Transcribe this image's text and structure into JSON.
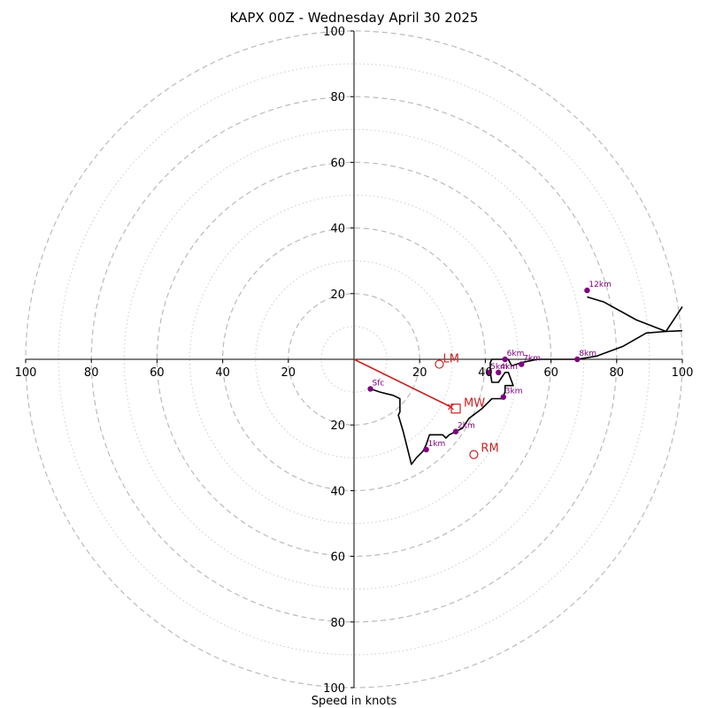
{
  "chart_data": {
    "type": "hodograph",
    "title": "KAPX 00Z - Wednesday April 30 2025",
    "xlabel": "Speed in knots",
    "ylabel": "",
    "xlim": [
      -100,
      100
    ],
    "ylim": [
      -100,
      100
    ],
    "ring_step_major": 20,
    "ring_step_minor": 10,
    "tick_labels_x": [
      "100",
      "80",
      "60",
      "40",
      "20",
      "20",
      "40",
      "60",
      "80",
      "100"
    ],
    "tick_values_x": [
      -100,
      -80,
      -60,
      -40,
      -20,
      20,
      40,
      60,
      80,
      100
    ],
    "tick_labels_y": [
      "100",
      "80",
      "60",
      "40",
      "20",
      "20",
      "40",
      "60",
      "80",
      "100"
    ],
    "tick_values_y": [
      100,
      80,
      60,
      40,
      20,
      -20,
      -40,
      -60,
      -80,
      -100
    ],
    "hodograph_trace": [
      [
        5,
        -9
      ],
      [
        8,
        -10
      ],
      [
        12,
        -11
      ],
      [
        14,
        -12
      ],
      [
        14,
        -16
      ],
      [
        13.5,
        -17
      ],
      [
        15,
        -22
      ],
      [
        17.5,
        -32
      ],
      [
        19,
        -30
      ],
      [
        21,
        -28
      ],
      [
        22,
        -26
      ],
      [
        23,
        -23
      ],
      [
        27,
        -23
      ],
      [
        28,
        -24
      ],
      [
        29,
        -23
      ],
      [
        31,
        -22
      ],
      [
        33,
        -21
      ],
      [
        35,
        -18
      ],
      [
        39,
        -15
      ],
      [
        42,
        -12
      ],
      [
        45,
        -12
      ],
      [
        46,
        -10
      ],
      [
        46,
        -8
      ],
      [
        48.5,
        -8
      ],
      [
        47,
        -4
      ],
      [
        46,
        -4
      ],
      [
        44,
        -7
      ],
      [
        42,
        -7
      ],
      [
        41.5,
        -4
      ],
      [
        41.5,
        -1
      ],
      [
        42,
        0
      ],
      [
        47,
        0
      ],
      [
        48,
        -2
      ],
      [
        51,
        -1
      ],
      [
        56,
        0
      ],
      [
        60,
        0
      ],
      [
        64,
        0
      ],
      [
        68,
        0
      ],
      [
        74,
        1
      ],
      [
        82,
        4
      ],
      [
        89,
        8
      ],
      [
        95,
        8.5
      ],
      [
        100,
        8.7
      ]
    ],
    "upper_trace": [
      [
        71,
        19
      ],
      [
        76,
        17.5
      ],
      [
        86,
        12
      ],
      [
        95,
        8.5
      ],
      [
        100,
        16
      ]
    ],
    "height_markers": [
      {
        "label": "Sfc",
        "u": 5,
        "v": -9
      },
      {
        "label": "1km",
        "u": 22,
        "v": -27.5
      },
      {
        "label": "2km",
        "u": 31,
        "v": -22
      },
      {
        "label": "3km",
        "u": 45.5,
        "v": -11.5
      },
      {
        "label": "4km",
        "u": 44,
        "v": -4
      },
      {
        "label": "5km",
        "u": 41,
        "v": -4
      },
      {
        "label": "6km",
        "u": 46,
        "v": 0
      },
      {
        "label": "7km",
        "u": 51,
        "v": -1.5
      },
      {
        "label": "8km",
        "u": 68,
        "v": 0
      },
      {
        "label": "12km",
        "u": 71,
        "v": 21
      }
    ],
    "storm_motion": {
      "LM": {
        "u": 26,
        "v": -1.5
      },
      "MW": {
        "u": 31,
        "v": -15
      },
      "RM": {
        "u": 36.5,
        "v": -29
      }
    },
    "motion_vector": {
      "from": [
        0,
        0
      ],
      "to": [
        29.5,
        -14.5
      ]
    },
    "colors": {
      "ring_major": "#bbbbbb",
      "ring_minor": "#cccccc",
      "axis": "#000000",
      "trace": "#000000",
      "marker": "#800080",
      "storm": "#cc2222"
    }
  }
}
